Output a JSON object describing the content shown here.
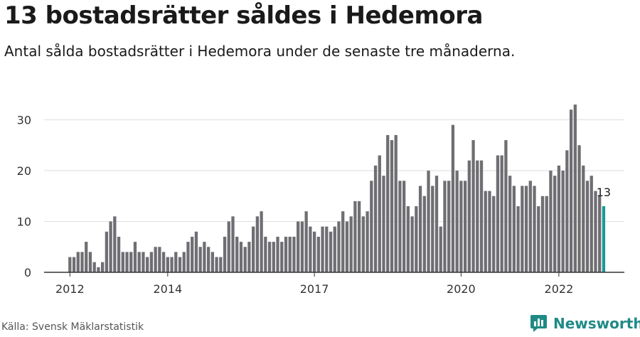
{
  "title": "13 bostadsrätter såldes i Hedemora",
  "subtitle": "Antal sålda bostadsrätter i Hedemora under de senaste tre månaderna.",
  "source": "Källa: Svensk Mäklarstatistik",
  "brand": "Newsworthy",
  "colors": {
    "bar": "#6f6e73",
    "highlight": "#199a96",
    "grid": "#dedede",
    "axis": "#333333"
  },
  "chart_data": {
    "type": "bar",
    "start": "2012-01",
    "frequency": "monthly",
    "x_tick_labels": [
      "2012",
      "2014",
      "2017",
      "2020",
      "2022"
    ],
    "y_tick_labels": [
      "0",
      "10",
      "20",
      "30"
    ],
    "ylim": [
      0,
      35
    ],
    "grid": true,
    "highlight_label": "13",
    "values": [
      3,
      3,
      4,
      4,
      6,
      4,
      2,
      1,
      2,
      8,
      10,
      11,
      7,
      4,
      4,
      4,
      6,
      4,
      4,
      3,
      4,
      5,
      5,
      4,
      3,
      3,
      4,
      3,
      4,
      6,
      7,
      8,
      5,
      6,
      5,
      4,
      3,
      3,
      7,
      10,
      11,
      7,
      6,
      5,
      6,
      9,
      11,
      12,
      7,
      6,
      6,
      7,
      6,
      7,
      7,
      7,
      10,
      10,
      12,
      9,
      8,
      7,
      9,
      9,
      8,
      9,
      10,
      12,
      10,
      11,
      14,
      14,
      11,
      12,
      18,
      21,
      23,
      19,
      27,
      26,
      27,
      18,
      18,
      13,
      11,
      13,
      17,
      15,
      20,
      17,
      19,
      9,
      18,
      18,
      29,
      20,
      18,
      18,
      22,
      26,
      22,
      22,
      16,
      16,
      15,
      23,
      23,
      26,
      19,
      17,
      13,
      17,
      17,
      18,
      17,
      13,
      15,
      15,
      20,
      19,
      21,
      20,
      24,
      32,
      33,
      25,
      21,
      18,
      19,
      16,
      15,
      13
    ]
  }
}
